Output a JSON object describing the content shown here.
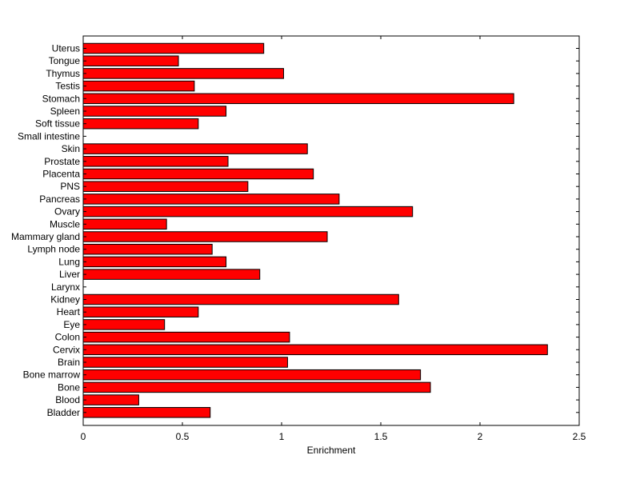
{
  "chart_data": {
    "type": "bar",
    "orientation": "horizontal",
    "title": "",
    "xlabel": "Enrichment",
    "ylabel": "",
    "xlim": [
      0,
      2.5
    ],
    "xticks": [
      0,
      0.5,
      1,
      1.5,
      2,
      2.5
    ],
    "xtick_labels": [
      "0",
      "0.5",
      "1",
      "1.5",
      "2",
      "2.5"
    ],
    "grid": false,
    "legend": "none",
    "bar_color": "#ff0000",
    "bar_edge_color": "#000000",
    "categories": [
      "Uterus",
      "Tongue",
      "Thymus",
      "Testis",
      "Stomach",
      "Spleen",
      "Soft tissue",
      "Small intestine",
      "Skin",
      "Prostate",
      "Placenta",
      "PNS",
      "Pancreas",
      "Ovary",
      "Muscle",
      "Mammary gland",
      "Lymph node",
      "Lung",
      "Liver",
      "Larynx",
      "Kidney",
      "Heart",
      "Eye",
      "Colon",
      "Cervix",
      "Brain",
      "Bone marrow",
      "Bone",
      "Blood",
      "Bladder"
    ],
    "values": [
      0.91,
      0.48,
      1.01,
      0.56,
      2.17,
      0.72,
      0.58,
      0.0,
      1.13,
      0.73,
      1.16,
      0.83,
      1.29,
      1.66,
      0.42,
      1.23,
      0.65,
      0.72,
      0.89,
      0.0,
      1.59,
      0.58,
      0.41,
      1.04,
      2.34,
      1.03,
      1.7,
      1.75,
      0.28,
      0.64
    ]
  }
}
